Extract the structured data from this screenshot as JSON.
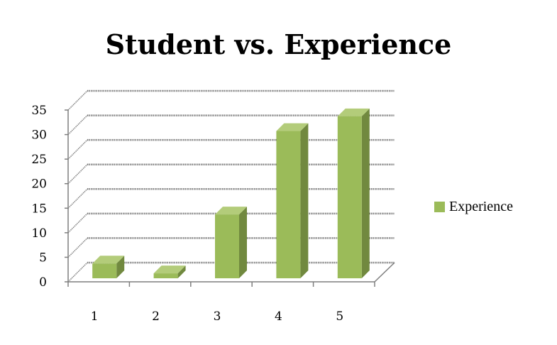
{
  "chart_data": {
    "type": "bar",
    "title": "Student vs. Experience",
    "categories": [
      "1",
      "2",
      "3",
      "4",
      "5"
    ],
    "series": [
      {
        "name": "Experience",
        "values": [
          3,
          1,
          13,
          30,
          33
        ]
      }
    ],
    "xlabel": "",
    "ylabel": "",
    "ylim": [
      0,
      35
    ],
    "yticks": [
      "0",
      "5",
      "10",
      "15",
      "20",
      "25",
      "30",
      "35"
    ],
    "grid": true,
    "three_d": true,
    "legend_position": "right",
    "colors": {
      "bar_front": "#9bbb59",
      "bar_side": "#71893f",
      "bar_top": "#b3cc7a",
      "grid": "#7f7f7f"
    }
  }
}
